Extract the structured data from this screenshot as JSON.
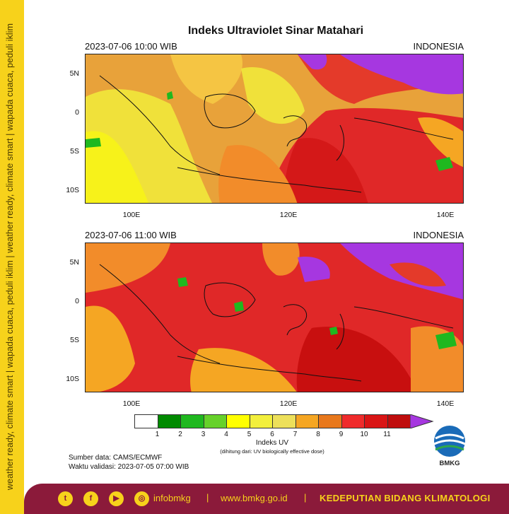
{
  "side_banner": "weather ready, climate smart  |  wapada cuaca, peduli iklim  |  weather ready, climate smart  |  wapada cuaca, peduli iklim",
  "title": "Indeks Ultraviolet Sinar Matahari",
  "panels": [
    {
      "datetime": "2023-07-06  10:00 WIB",
      "region": "INDONESIA"
    },
    {
      "datetime": "2023-07-06  11:00 WIB",
      "region": "INDONESIA"
    }
  ],
  "map_axes": {
    "lat_labels": [
      "5N",
      "0",
      "5S",
      "10S"
    ],
    "lon_labels": [
      "100E",
      "120E",
      "140E"
    ],
    "lat_range": [
      -12,
      7
    ],
    "lon_range": [
      94,
      142
    ]
  },
  "colorbar": {
    "title": "Indeks UV",
    "subtitle": "(dihitung dari: UV biologically effective dose)",
    "ticks": [
      "1",
      "2",
      "3",
      "4",
      "5",
      "6",
      "7",
      "8",
      "9",
      "10",
      "11"
    ],
    "colors": [
      "#ffffff",
      "#008a00",
      "#1fb81f",
      "#66d12a",
      "#ffff00",
      "#f2ef3c",
      "#ede05a",
      "#f5a623",
      "#e8781c",
      "#ef2b2b",
      "#d91515",
      "#bf0d0d",
      "#a637e0"
    ]
  },
  "source": {
    "data_line": "Sumber data: CAMS/ECMWF",
    "validity_line": "Waktu validasi: 2023-07-05 07:00 WIB"
  },
  "logo_text": "BMKG",
  "footer": {
    "social_icons": [
      "twitter-icon",
      "facebook-icon",
      "youtube-icon",
      "instagram-icon"
    ],
    "handle": "infobmkg",
    "website": "www.bmkg.go.id",
    "department": "KEDEPUTIAN BIDANG KLIMATOLOGI",
    "background": "#8b1a3a",
    "accent": "#f7d21b"
  }
}
